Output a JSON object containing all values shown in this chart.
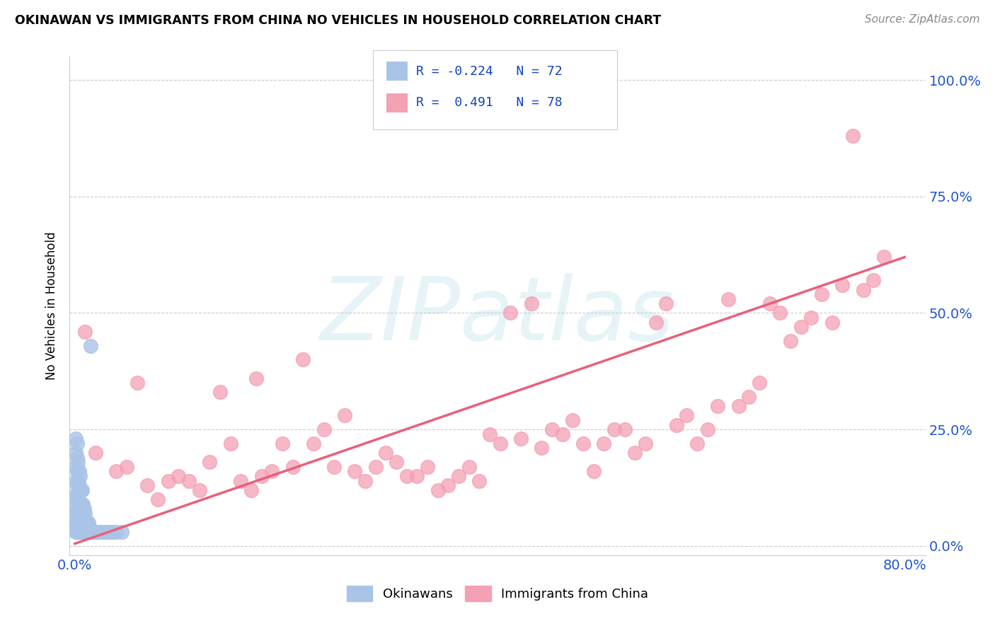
{
  "title": "OKINAWAN VS IMMIGRANTS FROM CHINA NO VEHICLES IN HOUSEHOLD CORRELATION CHART",
  "source": "Source: ZipAtlas.com",
  "ylabel": "No Vehicles in Household",
  "xlim": [
    -0.005,
    0.82
  ],
  "ylim": [
    -0.02,
    1.05
  ],
  "ytick_labels": [
    "0.0%",
    "25.0%",
    "50.0%",
    "75.0%",
    "100.0%"
  ],
  "ytick_values": [
    0.0,
    0.25,
    0.5,
    0.75,
    1.0
  ],
  "xtick_values": [
    0.0,
    0.2,
    0.4,
    0.6,
    0.8
  ],
  "xtick_labels": [
    "0.0%",
    "",
    "",
    "",
    "80.0%"
  ],
  "series1_color": "#aac4e8",
  "series2_color": "#f4a0b5",
  "series1_edge": "#7aaad8",
  "series2_edge": "#e87090",
  "trendline_color": "#e8607a",
  "watermark": "ZIPatlas",
  "legend_series1": "Okinawans",
  "legend_series2": "Immigrants from China",
  "series1_R": -0.224,
  "series1_N": 72,
  "series2_R": 0.491,
  "series2_N": 78,
  "trendline_x0": 0.0,
  "trendline_y0": 0.005,
  "trendline_x1": 0.8,
  "trendline_y1": 0.62,
  "china_x": [
    0.01,
    0.02,
    0.04,
    0.05,
    0.06,
    0.07,
    0.08,
    0.09,
    0.1,
    0.11,
    0.12,
    0.13,
    0.14,
    0.15,
    0.16,
    0.17,
    0.175,
    0.18,
    0.19,
    0.2,
    0.21,
    0.22,
    0.23,
    0.24,
    0.25,
    0.26,
    0.27,
    0.28,
    0.29,
    0.3,
    0.31,
    0.32,
    0.33,
    0.34,
    0.35,
    0.36,
    0.37,
    0.38,
    0.39,
    0.4,
    0.41,
    0.42,
    0.43,
    0.44,
    0.45,
    0.46,
    0.47,
    0.48,
    0.49,
    0.5,
    0.51,
    0.52,
    0.53,
    0.54,
    0.55,
    0.56,
    0.57,
    0.58,
    0.59,
    0.6,
    0.61,
    0.62,
    0.63,
    0.64,
    0.65,
    0.66,
    0.67,
    0.68,
    0.69,
    0.7,
    0.71,
    0.72,
    0.73,
    0.74,
    0.75,
    0.76,
    0.77,
    0.78
  ],
  "china_y": [
    0.46,
    0.2,
    0.16,
    0.17,
    0.35,
    0.13,
    0.1,
    0.14,
    0.15,
    0.14,
    0.12,
    0.18,
    0.33,
    0.22,
    0.14,
    0.12,
    0.36,
    0.15,
    0.16,
    0.22,
    0.17,
    0.4,
    0.22,
    0.25,
    0.17,
    0.28,
    0.16,
    0.14,
    0.17,
    0.2,
    0.18,
    0.15,
    0.15,
    0.17,
    0.12,
    0.13,
    0.15,
    0.17,
    0.14,
    0.24,
    0.22,
    0.5,
    0.23,
    0.52,
    0.21,
    0.25,
    0.24,
    0.27,
    0.22,
    0.16,
    0.22,
    0.25,
    0.25,
    0.2,
    0.22,
    0.48,
    0.52,
    0.26,
    0.28,
    0.22,
    0.25,
    0.3,
    0.53,
    0.3,
    0.32,
    0.35,
    0.52,
    0.5,
    0.44,
    0.47,
    0.49,
    0.54,
    0.48,
    0.56,
    0.88,
    0.55,
    0.57,
    0.62
  ],
  "okinawan_x": [
    0.001,
    0.001,
    0.001,
    0.001,
    0.001,
    0.001,
    0.001,
    0.001,
    0.001,
    0.002,
    0.002,
    0.002,
    0.002,
    0.002,
    0.002,
    0.002,
    0.002,
    0.003,
    0.003,
    0.003,
    0.003,
    0.003,
    0.003,
    0.004,
    0.004,
    0.004,
    0.004,
    0.004,
    0.005,
    0.005,
    0.005,
    0.005,
    0.005,
    0.006,
    0.006,
    0.006,
    0.006,
    0.007,
    0.007,
    0.007,
    0.007,
    0.008,
    0.008,
    0.008,
    0.009,
    0.009,
    0.009,
    0.01,
    0.01,
    0.01,
    0.011,
    0.011,
    0.012,
    0.012,
    0.013,
    0.013,
    0.014,
    0.014,
    0.015,
    0.016,
    0.017,
    0.018,
    0.019,
    0.02,
    0.022,
    0.025,
    0.028,
    0.03,
    0.033,
    0.036,
    0.04,
    0.045
  ],
  "okinawan_y": [
    0.03,
    0.05,
    0.07,
    0.09,
    0.11,
    0.14,
    0.17,
    0.2,
    0.23,
    0.03,
    0.05,
    0.07,
    0.1,
    0.13,
    0.16,
    0.19,
    0.22,
    0.03,
    0.05,
    0.08,
    0.11,
    0.14,
    0.18,
    0.03,
    0.06,
    0.09,
    0.13,
    0.16,
    0.03,
    0.05,
    0.08,
    0.12,
    0.15,
    0.03,
    0.06,
    0.09,
    0.12,
    0.03,
    0.06,
    0.09,
    0.12,
    0.03,
    0.06,
    0.09,
    0.03,
    0.06,
    0.08,
    0.03,
    0.05,
    0.07,
    0.03,
    0.05,
    0.03,
    0.05,
    0.03,
    0.05,
    0.03,
    0.04,
    0.43,
    0.03,
    0.03,
    0.03,
    0.03,
    0.03,
    0.03,
    0.03,
    0.03,
    0.03,
    0.03,
    0.03,
    0.03,
    0.03
  ]
}
